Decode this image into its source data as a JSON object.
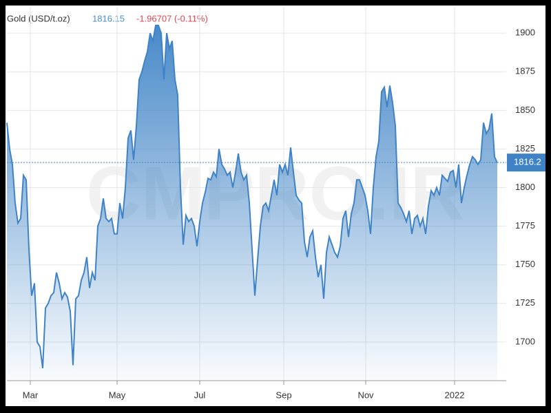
{
  "chart_data": {
    "type": "area",
    "title": "Gold (USD/t.oz)",
    "price": "1816.15",
    "change": "-1.96707 (-0.11%)",
    "watermark": "CMPRO.IR",
    "current_price": 1816.2,
    "color": "#3f83c6",
    "grid": true,
    "ylim": [
      1675,
      1917
    ],
    "yticks": [
      1700,
      1725,
      1750,
      1775,
      1800,
      1825,
      1850,
      1875,
      1900
    ],
    "xlim": [
      0,
      181.25
    ],
    "xticks": [
      {
        "value": 8.5,
        "label": "Mar"
      },
      {
        "value": 40,
        "label": "May"
      },
      {
        "value": 70,
        "label": "Jul"
      },
      {
        "value": 100.5,
        "label": "Sep"
      },
      {
        "value": 130.25,
        "label": "Nov"
      },
      {
        "value": 162.5,
        "label": "2022"
      }
    ],
    "values": [
      1842,
      1825,
      1815,
      1790,
      1777,
      1780,
      1808,
      1805,
      1760,
      1730,
      1738,
      1700,
      1697,
      1683,
      1722,
      1725,
      1730,
      1732,
      1745,
      1738,
      1728,
      1732,
      1729,
      1720,
      1685,
      1728,
      1730,
      1740,
      1745,
      1755,
      1735,
      1745,
      1740,
      1775,
      1780,
      1793,
      1780,
      1778,
      1780,
      1770,
      1770,
      1790,
      1780,
      1800,
      1832,
      1837,
      1818,
      1840,
      1870,
      1875,
      1882,
      1888,
      1900,
      1895,
      1905,
      1905,
      1900,
      1870,
      1900,
      1890,
      1895,
      1870,
      1860,
      1800,
      1763,
      1782,
      1778,
      1780,
      1775,
      1762,
      1778,
      1790,
      1797,
      1806,
      1805,
      1810,
      1807,
      1825,
      1815,
      1812,
      1808,
      1810,
      1800,
      1810,
      1822,
      1810,
      1805,
      1808,
      1790,
      1760,
      1730,
      1753,
      1775,
      1788,
      1790,
      1785,
      1795,
      1805,
      1795,
      1815,
      1810,
      1815,
      1808,
      1826,
      1810,
      1795,
      1792,
      1790,
      1765,
      1755,
      1768,
      1772,
      1755,
      1742,
      1750,
      1728,
      1758,
      1768,
      1763,
      1758,
      1755,
      1762,
      1780,
      1785,
      1768,
      1783,
      1790,
      1805,
      1805,
      1800,
      1795,
      1785,
      1770,
      1800,
      1820,
      1830,
      1862,
      1865,
      1852,
      1866,
      1855,
      1840,
      1790,
      1787,
      1783,
      1778,
      1785,
      1770,
      1780,
      1782,
      1775,
      1780,
      1770,
      1788,
      1798,
      1795,
      1800,
      1795,
      1808,
      1806,
      1804,
      1810,
      1811,
      1800,
      1815,
      1790,
      1800,
      1808,
      1815,
      1820,
      1818,
      1815,
      1818,
      1842,
      1835,
      1838,
      1848,
      1820,
      1816
    ]
  }
}
